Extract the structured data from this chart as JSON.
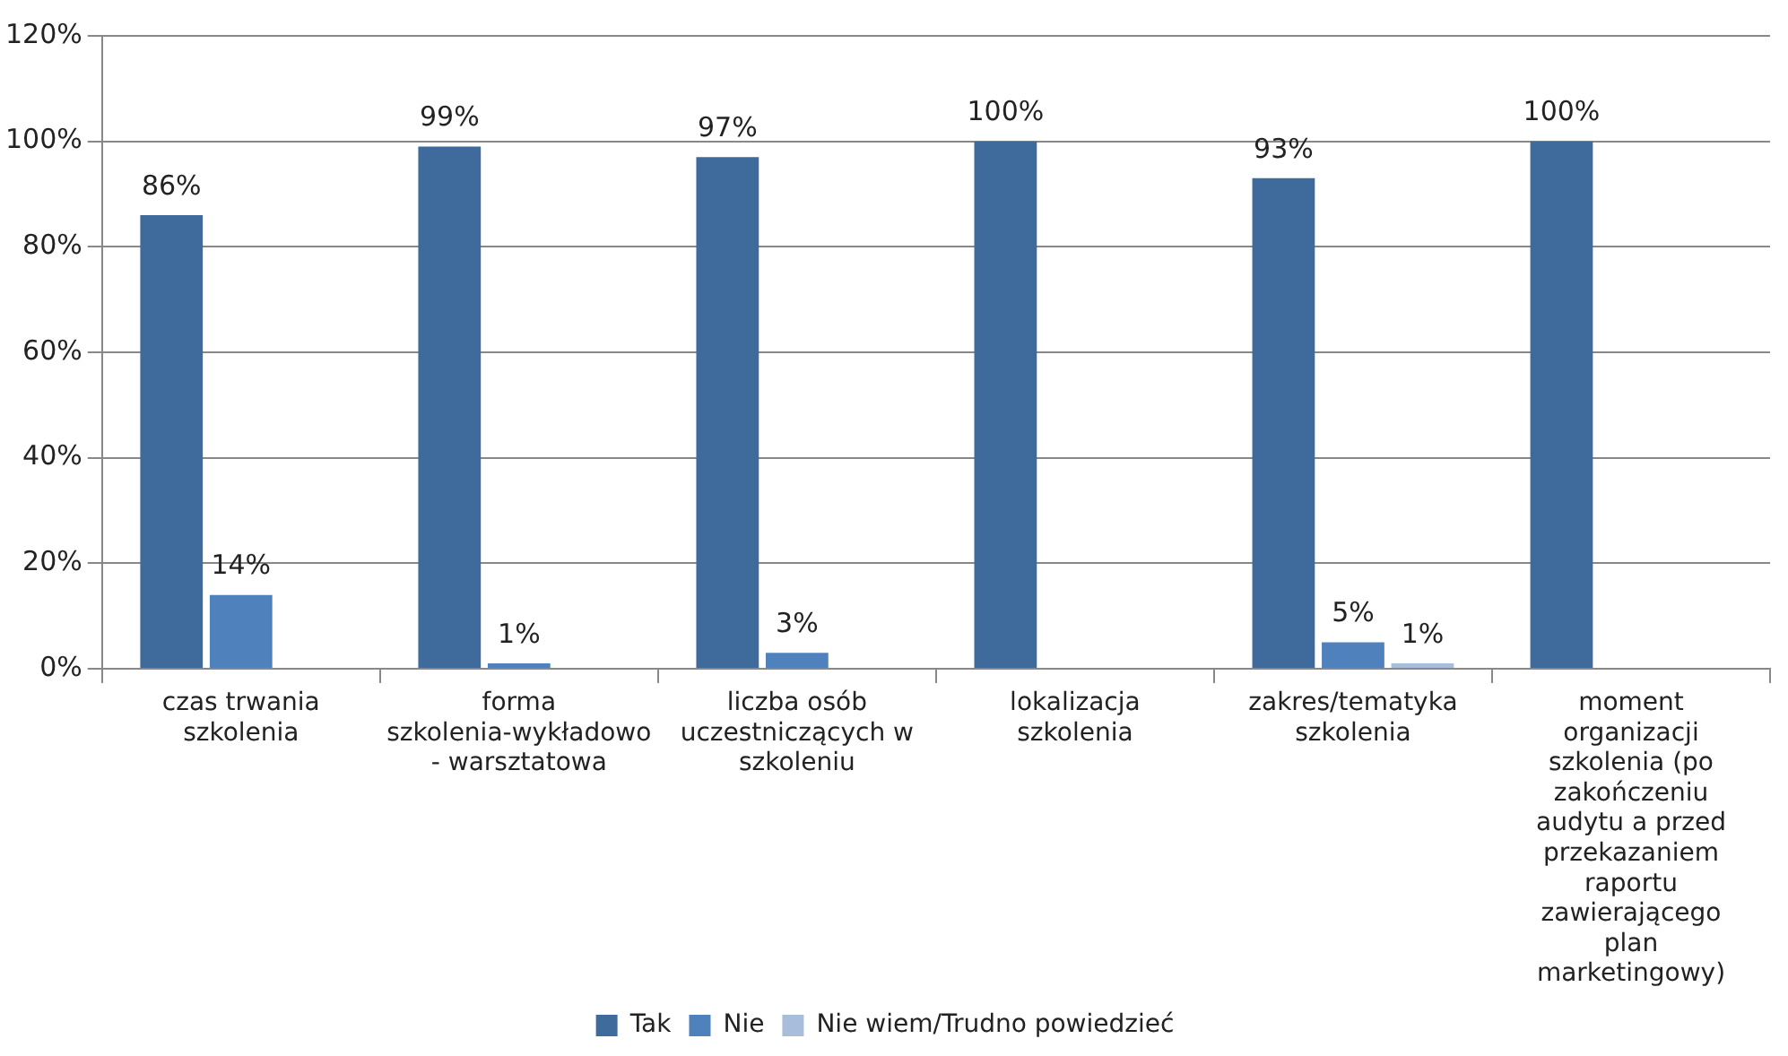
{
  "chart_data": {
    "type": "bar",
    "categories": [
      "czas trwania szkolenia",
      "forma szkolenia-wykładowo - warsztatowa",
      "liczba osób uczestniczących w szkoleniu",
      "lokalizacja szkolenia",
      "zakres/tematyka szkolenia",
      "moment organizacji szkolenia (po zakończeniu audytu a przed przekazaniem raportu zawierającego plan marketingowy)"
    ],
    "series": [
      {
        "name": "Tak",
        "color": "#3f6a9c",
        "values": [
          86,
          99,
          97,
          100,
          93,
          100
        ],
        "value_labels": [
          "86%",
          "99%",
          "97%",
          "100%",
          "93%",
          "100%"
        ]
      },
      {
        "name": "Nie",
        "color": "#4f81bd",
        "values": [
          14,
          1,
          3,
          null,
          5,
          null
        ],
        "value_labels": [
          "14%",
          "1%",
          "3%",
          null,
          "5%",
          null
        ]
      },
      {
        "name": "Nie wiem/Trudno powiedzieć",
        "color": "#a8bcdc",
        "values": [
          null,
          null,
          null,
          null,
          1,
          null
        ],
        "value_labels": [
          null,
          null,
          null,
          null,
          "1%",
          null
        ]
      }
    ],
    "ylim": [
      0,
      120
    ],
    "yticks": [
      {
        "value": 0,
        "label": "0%"
      },
      {
        "value": 20,
        "label": "20%"
      },
      {
        "value": 40,
        "label": "40%"
      },
      {
        "value": 60,
        "label": "60%"
      },
      {
        "value": 80,
        "label": "80%"
      },
      {
        "value": 100,
        "label": "100%"
      },
      {
        "value": 120,
        "label": "120%"
      }
    ],
    "grid": "y",
    "legend": "bottom"
  }
}
